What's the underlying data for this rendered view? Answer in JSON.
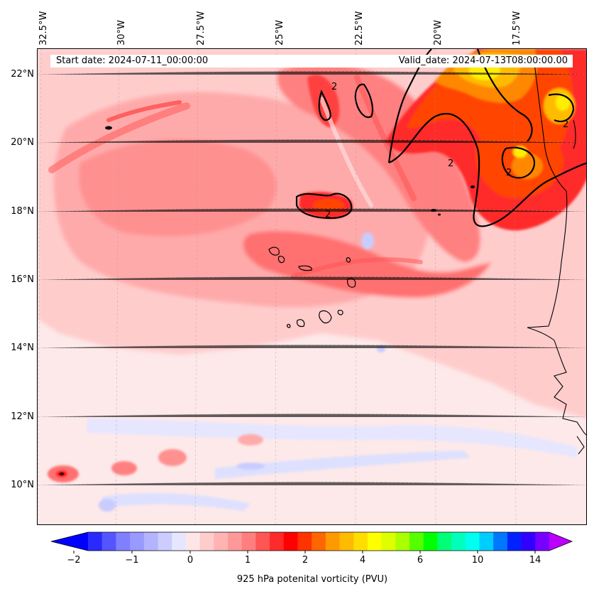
{
  "header": {
    "start_date": "Start date: 2024-07-11_00:00:00",
    "valid_date": "Valid_date: 2024-07-13T08:00:00.00"
  },
  "longitude_labels": [
    "32.5°W",
    "30°W",
    "27.5°W",
    "25°W",
    "22.5°W",
    "20°W",
    "17.5°W"
  ],
  "latitude_labels": [
    "22°N",
    "20°N",
    "18°N",
    "16°N",
    "14°N",
    "12°N",
    "10°N"
  ],
  "contour_label": "2",
  "colorbar": {
    "title": "925 hPa potenital vorticity (PVU)",
    "tick_labels": [
      "−2",
      "−1",
      "0",
      "1",
      "2",
      "4",
      "6",
      "10",
      "14"
    ],
    "colors": [
      "#0000ff",
      "#2a2aff",
      "#5555ff",
      "#7f7fff",
      "#9999ff",
      "#b3b3ff",
      "#ccccff",
      "#e6e6ff",
      "#ffe6e6",
      "#ffcccc",
      "#ffb3b3",
      "#ff9999",
      "#ff7f7f",
      "#ff5555",
      "#ff2a2a",
      "#ff0000",
      "#ff3300",
      "#ff6600",
      "#ff9900",
      "#ffbb00",
      "#ffdd00",
      "#ffff00",
      "#ddff00",
      "#aaff00",
      "#55ff00",
      "#00ff00",
      "#00ff77",
      "#00ffbb",
      "#00ffee",
      "#00ccff",
      "#0077ff",
      "#0022ff",
      "#3300ff",
      "#7700ff",
      "#bb00ff"
    ]
  },
  "palette": {
    "background": "#fde9e9",
    "light_pink": "#ffcccc",
    "pink": "#ffaaaa",
    "salmon": "#ff8080",
    "red": "#ff3030",
    "deep_red": "#ff0000",
    "orange_red": "#ff4000",
    "orange": "#ff8800",
    "amber": "#ffbb00",
    "yellow": "#ffee00",
    "pale_blue": "#dde0ff",
    "blue": "#b3b8ff",
    "coast": "#000000"
  }
}
